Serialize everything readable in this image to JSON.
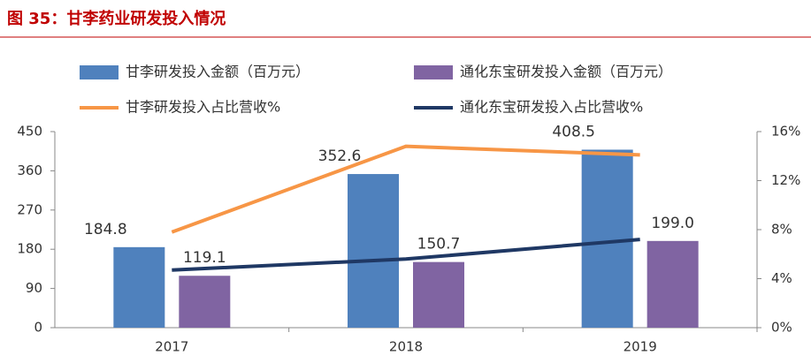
{
  "chart_data": {
    "type": "bar-line",
    "title": "图 35：甘李药业研发投入情况",
    "categories": [
      "2017",
      "2018",
      "2019"
    ],
    "ylim": [
      0,
      450
    ],
    "yticks": [
      0,
      90,
      180,
      270,
      360,
      450
    ],
    "y2lim": [
      0,
      16
    ],
    "y2ticks": [
      {
        "value": 0,
        "label": "0%"
      },
      {
        "value": 4,
        "label": "4%"
      },
      {
        "value": 8,
        "label": "8%"
      },
      {
        "value": 12,
        "label": "12%"
      },
      {
        "value": 16,
        "label": "16%"
      }
    ],
    "series": [
      {
        "name": "甘李研发投入金额（百万元）",
        "type": "bar",
        "color": "#4f81bd",
        "values": [
          184.8,
          352.6,
          408.5
        ],
        "value_labels": [
          "184.8",
          "352.6",
          "408.5"
        ]
      },
      {
        "name": "通化东宝研发投入金额（百万元）",
        "type": "bar",
        "color": "#8064a2",
        "values": [
          119.1,
          150.7,
          199.0
        ],
        "value_labels": [
          "119.1",
          "150.7",
          "199.0"
        ]
      },
      {
        "name": "甘李研发投入占比营收%",
        "type": "line",
        "axis": "y2",
        "color": "#f79646",
        "values": [
          7.8,
          14.8,
          14.1
        ]
      },
      {
        "name": "通化东宝研发投入占比营收%",
        "type": "line",
        "axis": "y2",
        "color": "#1f3864",
        "values": [
          4.7,
          5.6,
          7.2
        ]
      }
    ]
  }
}
